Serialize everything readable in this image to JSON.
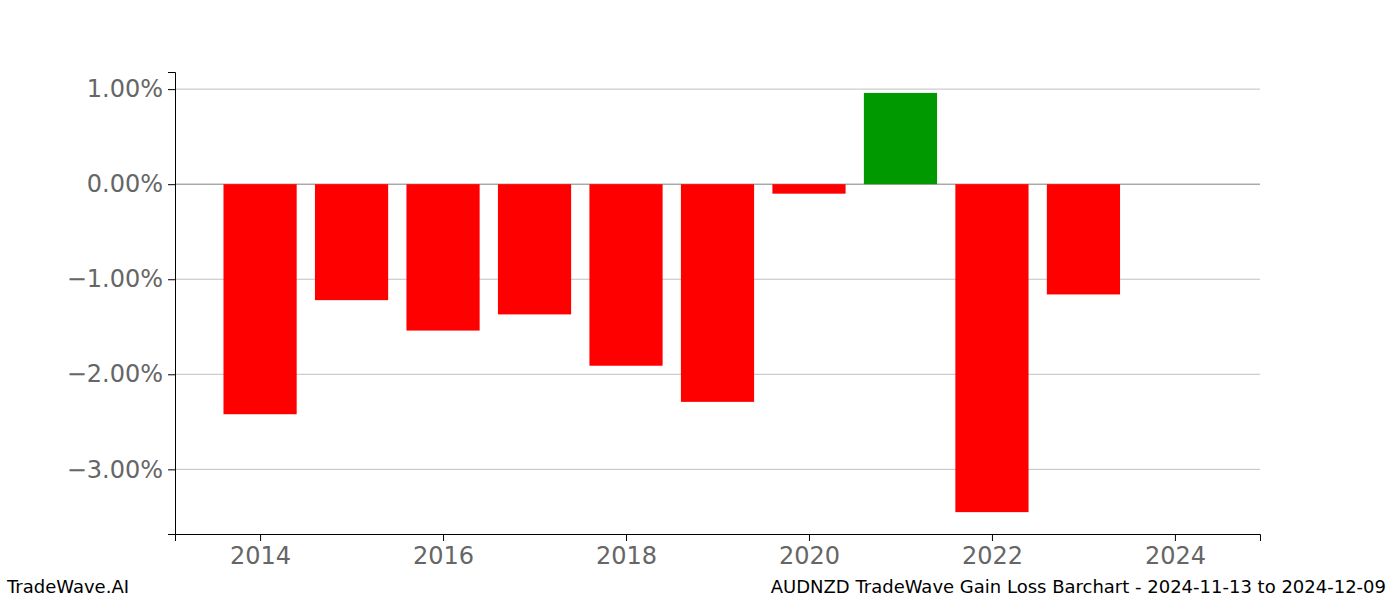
{
  "chart_data": {
    "type": "bar",
    "title": "AUDNZD TradeWave Gain Loss Barchart - 2024-11-13 to 2024-12-09",
    "annotations": [
      "TradeWave.AI"
    ],
    "x": [
      2014,
      2015,
      2016,
      2017,
      2018,
      2019,
      2020,
      2021,
      2022,
      2023
    ],
    "values": [
      -2.42,
      -1.22,
      -1.54,
      -1.37,
      -1.91,
      -2.29,
      -0.1,
      0.96,
      -3.45,
      -1.16
    ],
    "colors": [
      "#ff0000",
      "#ff0000",
      "#ff0000",
      "#ff0000",
      "#ff0000",
      "#ff0000",
      "#ff0000",
      "#009900",
      "#ff0000",
      "#ff0000"
    ],
    "xlim": [
      2013.07,
      2024.93
    ],
    "xticks": [
      2014,
      2016,
      2018,
      2020,
      2022,
      2024
    ],
    "ylim": [
      -3.68,
      1.18
    ],
    "yticks": [
      {
        "value": 1,
        "label": "1.00%"
      },
      {
        "value": 0,
        "label": "0.00%"
      },
      {
        "value": -1,
        "label": "−1.00%"
      },
      {
        "value": -2,
        "label": "−2.00%"
      },
      {
        "value": -3,
        "label": "−3.00%"
      }
    ],
    "grid": true
  }
}
